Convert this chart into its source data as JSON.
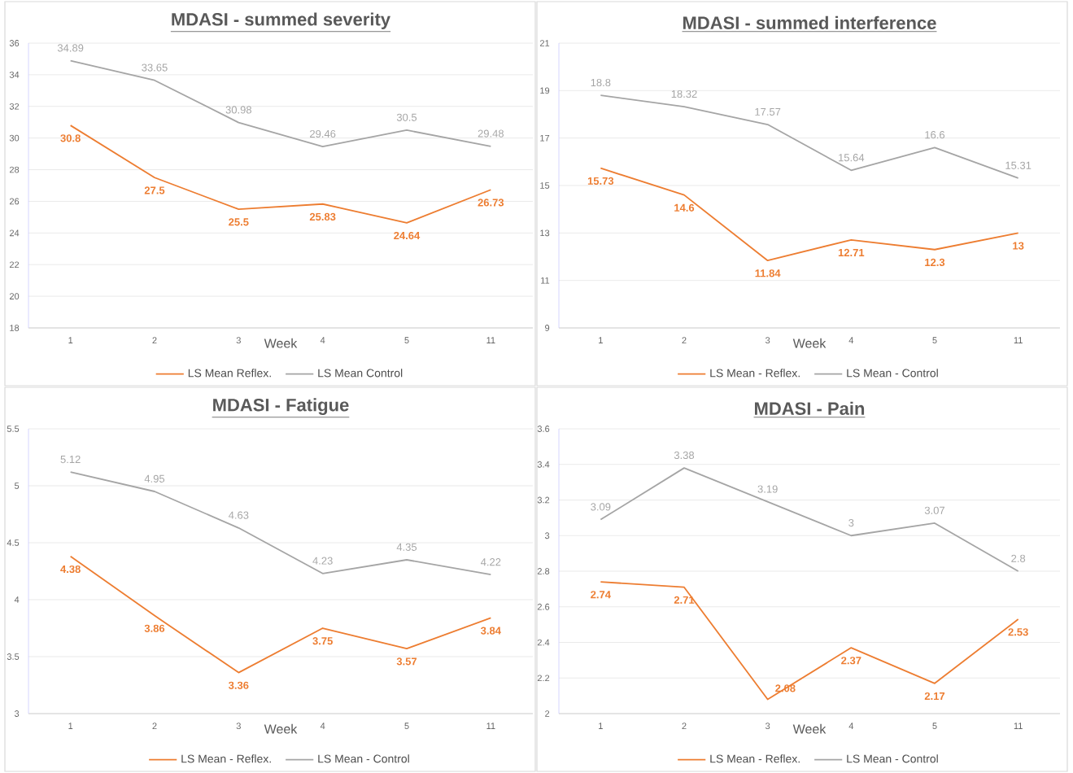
{
  "chart_data": [
    {
      "type": "line",
      "title": "MDASI - summed severity",
      "xlabel": "Week",
      "categories": [
        "1",
        "2",
        "3",
        "4",
        "5",
        "11"
      ],
      "ylim": [
        18,
        36
      ],
      "yticks": [
        18,
        20,
        22,
        24,
        26,
        28,
        30,
        32,
        34,
        36
      ],
      "grid": "y",
      "legend": "bottom",
      "marker": "none",
      "line_style": "solid",
      "data_labels": true,
      "series": [
        {
          "name": "LS Mean Reflex.",
          "color": "#ed7d31",
          "values": [
            30.8,
            27.5,
            25.5,
            25.83,
            24.64,
            26.73
          ]
        },
        {
          "name": "LS Mean Control",
          "color": "#a5a5a5",
          "values": [
            34.89,
            33.65,
            30.98,
            29.46,
            30.5,
            29.48
          ]
        }
      ]
    },
    {
      "type": "line",
      "title": "MDASI - summed interference",
      "xlabel": "Week",
      "categories": [
        "1",
        "2",
        "3",
        "4",
        "5",
        "11"
      ],
      "ylim": [
        9,
        21
      ],
      "yticks": [
        9,
        11,
        13,
        15,
        17,
        19,
        21
      ],
      "grid": "y",
      "legend": "bottom",
      "marker": "none",
      "line_style": "solid",
      "data_labels": true,
      "series": [
        {
          "name": "LS Mean - Reflex.",
          "color": "#ed7d31",
          "values": [
            15.73,
            14.6,
            11.84,
            12.71,
            12.3,
            13
          ]
        },
        {
          "name": "LS Mean - Control",
          "color": "#a5a5a5",
          "values": [
            18.8,
            18.32,
            17.57,
            15.64,
            16.6,
            15.31
          ]
        }
      ]
    },
    {
      "type": "line",
      "title": "MDASI - Fatigue",
      "xlabel": "Week",
      "categories": [
        "1",
        "2",
        "3",
        "4",
        "5",
        "11"
      ],
      "ylim": [
        3,
        5.5
      ],
      "yticks": [
        3,
        3.5,
        4,
        4.5,
        5,
        5.5
      ],
      "grid": "y",
      "legend": "bottom",
      "marker": "none",
      "line_style": "solid",
      "data_labels": true,
      "series": [
        {
          "name": "LS Mean - Reflex.",
          "color": "#ed7d31",
          "values": [
            4.38,
            3.86,
            3.36,
            3.75,
            3.57,
            3.84
          ]
        },
        {
          "name": "LS Mean - Control",
          "color": "#a5a5a5",
          "values": [
            5.12,
            4.95,
            4.63,
            4.23,
            4.35,
            4.22
          ]
        }
      ]
    },
    {
      "type": "line",
      "title": "MDASI - Pain",
      "xlabel": "Week",
      "categories": [
        "1",
        "2",
        "3",
        "4",
        "5",
        "11"
      ],
      "ylim": [
        2,
        3.6
      ],
      "yticks": [
        2,
        2.2,
        2.4,
        2.6,
        2.8,
        3,
        3.2,
        3.4,
        3.6
      ],
      "grid": "y",
      "legend": "bottom",
      "marker": "none",
      "line_style": "solid",
      "data_labels": true,
      "series": [
        {
          "name": "LS Mean - Reflex.",
          "color": "#ed7d31",
          "values": [
            2.74,
            2.71,
            2.08,
            2.37,
            2.17,
            2.53
          ]
        },
        {
          "name": "LS Mean - Control",
          "color": "#a5a5a5",
          "values": [
            3.09,
            3.38,
            3.19,
            3,
            3.07,
            2.8
          ]
        }
      ]
    }
  ]
}
